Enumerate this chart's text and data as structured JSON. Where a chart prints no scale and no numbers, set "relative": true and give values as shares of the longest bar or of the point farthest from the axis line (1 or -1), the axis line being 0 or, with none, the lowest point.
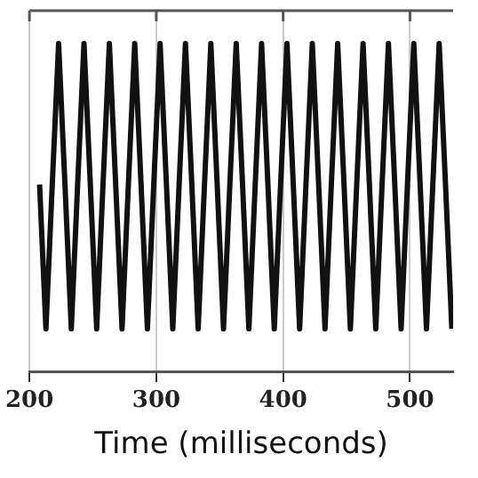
{
  "chart_data": {
    "type": "line",
    "xlabel": "Time (milliseconds)",
    "relative": true,
    "grid": "x",
    "marker": "none",
    "line_style": "solid",
    "legend": false,
    "tick_labels": "x",
    "xlim": [
      200,
      534
    ],
    "xticks": [
      200,
      300,
      400,
      500
    ],
    "x": [
      208,
      213,
      218,
      223,
      228,
      233,
      238,
      243,
      248,
      253,
      258,
      263,
      268,
      273,
      278,
      283,
      288,
      293,
      298,
      303,
      308,
      313,
      318,
      323,
      328,
      333,
      338,
      343,
      348,
      353,
      358,
      363,
      368,
      373,
      378,
      383,
      388,
      393,
      398,
      403,
      408,
      413,
      418,
      423,
      428,
      433,
      438,
      443,
      448,
      453,
      458,
      463,
      468,
      473,
      478,
      483,
      488,
      493,
      498,
      503,
      508,
      513,
      518,
      523,
      528,
      533
    ],
    "series": [
      {
        "color": "#111111",
        "values": [
          0.57,
          0.13,
          0.57,
          1,
          0.57,
          0.13,
          0.57,
          1,
          0.57,
          0.13,
          0.57,
          1,
          0.57,
          0.13,
          0.57,
          1,
          0.57,
          0.13,
          0.57,
          1,
          0.57,
          0.13,
          0.57,
          1,
          0.57,
          0.13,
          0.57,
          1,
          0.57,
          0.13,
          0.57,
          1,
          0.57,
          0.13,
          0.57,
          1,
          0.57,
          0.13,
          0.57,
          1,
          0.57,
          0.13,
          0.57,
          1,
          0.57,
          0.13,
          0.57,
          1,
          0.57,
          0.13,
          0.57,
          1,
          0.57,
          0.13,
          0.57,
          1,
          0.57,
          0.13,
          0.57,
          1,
          0.57,
          0.13,
          0.57,
          1,
          0.57,
          0.13
        ]
      }
    ]
  }
}
